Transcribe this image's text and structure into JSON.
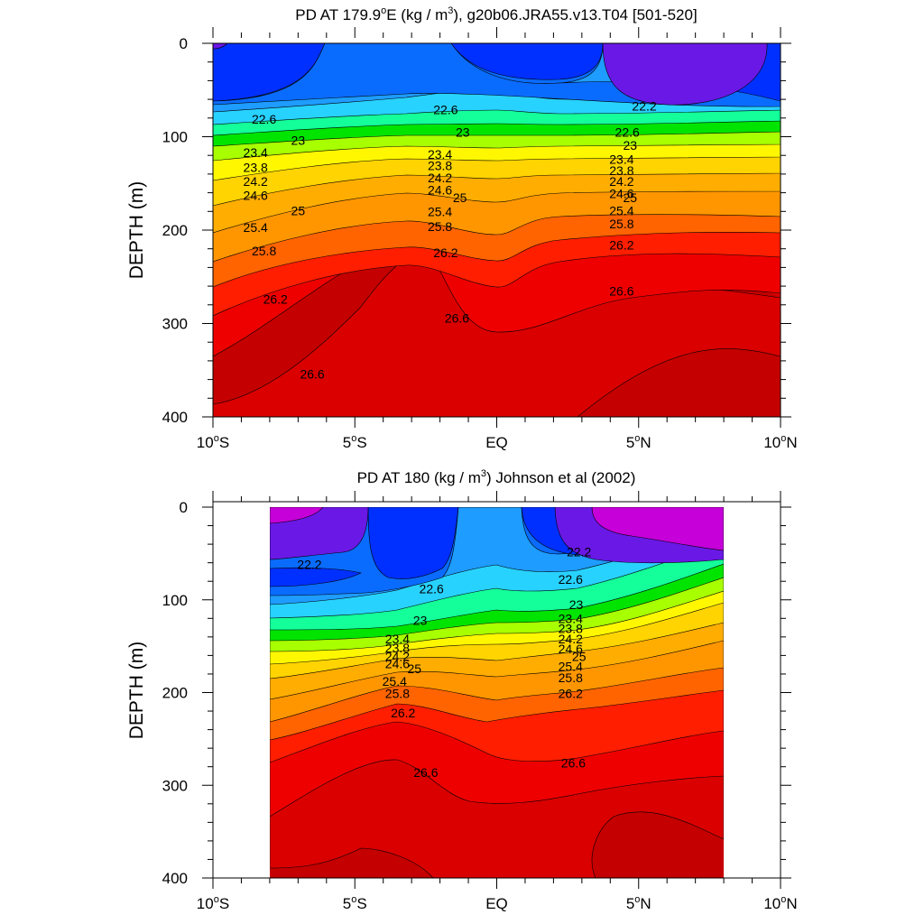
{
  "chart_data": [
    {
      "type": "contour",
      "title": "PD AT 179.9°E (kg / m3), g20b06.JRA55.v13.T04 [501-520]",
      "title_parts": {
        "prefix": "PD AT 179.9",
        "deg": "o",
        "mid": "E (kg / m",
        "sup": "3",
        "suffix": "), g20b06.JRA55.v13.T04 [501-520]"
      },
      "ylabel": "DEPTH (m)",
      "xlim": [
        -10,
        10
      ],
      "ylim": [
        0,
        400
      ],
      "y_reversed": true,
      "x_ticks": [
        {
          "value": -10,
          "num": "10",
          "deg": "o",
          "hem": "S"
        },
        {
          "value": -5,
          "num": "5",
          "deg": "o",
          "hem": "S"
        },
        {
          "value": 0,
          "num": "EQ",
          "deg": "",
          "hem": ""
        },
        {
          "value": 5,
          "num": "5",
          "deg": "o",
          "hem": "N"
        },
        {
          "value": 10,
          "num": "10",
          "deg": "o",
          "hem": "N"
        }
      ],
      "y_ticks": [
        "0",
        "100",
        "200",
        "300",
        "400"
      ],
      "data_x_range": [
        -10,
        10
      ],
      "contour_labels": [
        {
          "text": "22.6",
          "x": -8.2,
          "y": 81
        },
        {
          "text": "23",
          "x": -7.0,
          "y": 104
        },
        {
          "text": "23.4",
          "x": -8.5,
          "y": 117
        },
        {
          "text": "23.8",
          "x": -8.5,
          "y": 133
        },
        {
          "text": "24.2",
          "x": -8.5,
          "y": 148
        },
        {
          "text": "24.6",
          "x": -8.5,
          "y": 163
        },
        {
          "text": "25",
          "x": -7.0,
          "y": 179
        },
        {
          "text": "25.4",
          "x": -8.5,
          "y": 197
        },
        {
          "text": "25.8",
          "x": -8.2,
          "y": 222
        },
        {
          "text": "26.2",
          "x": -7.8,
          "y": 274
        },
        {
          "text": "26.6",
          "x": -6.5,
          "y": 354
        },
        {
          "text": "22.6",
          "x": -1.8,
          "y": 71
        },
        {
          "text": "23",
          "x": -1.2,
          "y": 95
        },
        {
          "text": "23.4",
          "x": -2.0,
          "y": 119
        },
        {
          "text": "23.8",
          "x": -2.0,
          "y": 131
        },
        {
          "text": "24.2",
          "x": -2.0,
          "y": 144
        },
        {
          "text": "24.6",
          "x": -2.0,
          "y": 157
        },
        {
          "text": "25",
          "x": -1.3,
          "y": 165
        },
        {
          "text": "25.4",
          "x": -2.0,
          "y": 180
        },
        {
          "text": "25.8",
          "x": -2.0,
          "y": 196
        },
        {
          "text": "26.2",
          "x": -1.8,
          "y": 224
        },
        {
          "text": "26.6",
          "x": -1.4,
          "y": 294
        },
        {
          "text": "22.2",
          "x": 5.2,
          "y": 67
        },
        {
          "text": "22.6",
          "x": 4.6,
          "y": 95
        },
        {
          "text": "23",
          "x": 4.7,
          "y": 109
        },
        {
          "text": "23.4",
          "x": 4.4,
          "y": 124
        },
        {
          "text": "23.8",
          "x": 4.4,
          "y": 136
        },
        {
          "text": "24.2",
          "x": 4.4,
          "y": 148
        },
        {
          "text": "24.6",
          "x": 4.4,
          "y": 161
        },
        {
          "text": "25",
          "x": 4.7,
          "y": 165
        },
        {
          "text": "25.4",
          "x": 4.4,
          "y": 179
        },
        {
          "text": "25.8",
          "x": 4.4,
          "y": 193
        },
        {
          "text": "26.2",
          "x": 4.4,
          "y": 216
        },
        {
          "text": "26.6",
          "x": 4.4,
          "y": 265
        }
      ]
    },
    {
      "type": "contour",
      "title": "PD AT 180 (kg / m3) Johnson et al (2002)",
      "title_parts": {
        "prefix": "PD AT 180",
        "deg": "",
        "mid": " (kg / m",
        "sup": "3",
        "suffix": ") Johnson et al (2002)"
      },
      "ylabel": "DEPTH (m)",
      "xlim": [
        -10,
        10
      ],
      "ylim": [
        0,
        400
      ],
      "y_reversed": true,
      "x_ticks": [
        {
          "value": -10,
          "num": "10",
          "deg": "o",
          "hem": "S"
        },
        {
          "value": -5,
          "num": "5",
          "deg": "o",
          "hem": "S"
        },
        {
          "value": 0,
          "num": "EQ",
          "deg": "",
          "hem": ""
        },
        {
          "value": 5,
          "num": "5",
          "deg": "o",
          "hem": "N"
        },
        {
          "value": 10,
          "num": "10",
          "deg": "o",
          "hem": "N"
        }
      ],
      "y_ticks": [
        "0",
        "100",
        "200",
        "300",
        "400"
      ],
      "data_x_range": [
        -8,
        8
      ],
      "data_y_range": [
        5,
        400
      ],
      "contour_labels": [
        {
          "text": "22.2",
          "x": -6.6,
          "y": 62
        },
        {
          "text": "22.6",
          "x": -2.3,
          "y": 88
        },
        {
          "text": "23",
          "x": -2.7,
          "y": 122
        },
        {
          "text": "23.4",
          "x": -3.5,
          "y": 142
        },
        {
          "text": "23.8",
          "x": -3.5,
          "y": 152
        },
        {
          "text": "24.2",
          "x": -3.5,
          "y": 161
        },
        {
          "text": "24.6",
          "x": -3.5,
          "y": 169
        },
        {
          "text": "25",
          "x": -2.9,
          "y": 174
        },
        {
          "text": "25.4",
          "x": -3.6,
          "y": 188
        },
        {
          "text": "25.8",
          "x": -3.5,
          "y": 201
        },
        {
          "text": "26.2",
          "x": -3.3,
          "y": 222
        },
        {
          "text": "26.6",
          "x": -2.5,
          "y": 286
        },
        {
          "text": "22.2",
          "x": 2.9,
          "y": 48
        },
        {
          "text": "22.6",
          "x": 2.6,
          "y": 78
        },
        {
          "text": "23",
          "x": 2.8,
          "y": 105
        },
        {
          "text": "23.4",
          "x": 2.6,
          "y": 120
        },
        {
          "text": "23.8",
          "x": 2.6,
          "y": 131
        },
        {
          "text": "24.2",
          "x": 2.6,
          "y": 142
        },
        {
          "text": "24.6",
          "x": 2.6,
          "y": 153
        },
        {
          "text": "25",
          "x": 2.9,
          "y": 161
        },
        {
          "text": "25.4",
          "x": 2.6,
          "y": 172
        },
        {
          "text": "25.8",
          "x": 2.6,
          "y": 184
        },
        {
          "text": "26.2",
          "x": 2.6,
          "y": 201
        },
        {
          "text": "26.6",
          "x": 2.7,
          "y": 276
        }
      ]
    }
  ],
  "contour_levels": [
    "22.2",
    "22.6",
    "23",
    "23.4",
    "23.8",
    "24.2",
    "24.6",
    "25",
    "25.4",
    "25.8",
    "26.2",
    "26.6"
  ],
  "colormap": [
    "#9000ff",
    "#5a0ef0",
    "#0030ff",
    "#0a6cff",
    "#1e9cff",
    "#28d2ff",
    "#14ff9a",
    "#00e400",
    "#a8ff00",
    "#fff700",
    "#ffd400",
    "#ffad00",
    "#ff9600",
    "#ff6400",
    "#ff1e00",
    "#e60000",
    "#c80000"
  ]
}
